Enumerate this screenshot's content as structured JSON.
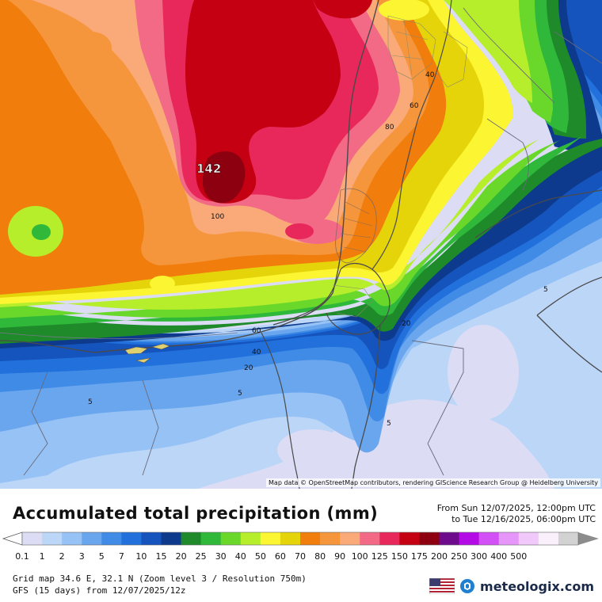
{
  "map": {
    "labels": {
      "max_value": "142",
      "c100": "100",
      "c80": "80",
      "c60_east": "60",
      "c40_east": "40",
      "c60_south": "60",
      "c40_south": "40",
      "c20_south": "20",
      "c20_east": "20",
      "c5_west": "5",
      "c5_mid": "5",
      "c5_south": "5",
      "c5_east": "5"
    },
    "attribution": "Map data © OpenStreetMap contributors, rendering GIScience Research Group @ Heidelberg University"
  },
  "header": {
    "title": "Accumulated total precipitation (mm)",
    "from": "From Sun 12/07/2025, 12:00pm UTC",
    "to": "to Tue 12/16/2025, 06:00pm UTC"
  },
  "legend": {
    "bins": [
      {
        "label": "0.1",
        "color": "#dcdcf5"
      },
      {
        "label": "1",
        "color": "#bcd6f8"
      },
      {
        "label": "2",
        "color": "#96c2f5"
      },
      {
        "label": "3",
        "color": "#6aa6ee"
      },
      {
        "label": "5",
        "color": "#3f8be6"
      },
      {
        "label": "7",
        "color": "#2270dc"
      },
      {
        "label": "10",
        "color": "#1454bc"
      },
      {
        "label": "15",
        "color": "#0d3a8c"
      },
      {
        "label": "20",
        "color": "#1e8a2a"
      },
      {
        "label": "25",
        "color": "#30b83a"
      },
      {
        "label": "30",
        "color": "#6ad82a"
      },
      {
        "label": "40",
        "color": "#b6ee2c"
      },
      {
        "label": "50",
        "color": "#fbf532"
      },
      {
        "label": "60",
        "color": "#e6d40a"
      },
      {
        "label": "70",
        "color": "#f07d0c"
      },
      {
        "label": "80",
        "color": "#f5963c"
      },
      {
        "label": "90",
        "color": "#faaa78"
      },
      {
        "label": "100",
        "color": "#f26a86"
      },
      {
        "label": "125",
        "color": "#e8285a"
      },
      {
        "label": "150",
        "color": "#c40012"
      },
      {
        "label": "175",
        "color": "#8c0010"
      },
      {
        "label": "200",
        "color": "#6e0a8c"
      },
      {
        "label": "250",
        "color": "#b40ae6"
      },
      {
        "label": "300",
        "color": "#d250f5"
      },
      {
        "label": "400",
        "color": "#e696f8"
      },
      {
        "label": "500",
        "color": "#f0c8fa"
      },
      {
        "label": "",
        "color": "#faf0fc"
      },
      {
        "label": "",
        "color": "#d2d2d2"
      }
    ],
    "arrow_left_color": "#ffffff",
    "arrow_right_color": "#8c8c8c"
  },
  "footer": {
    "grid": "Grid map 34.6 E, 32.1 N (Zoom level 3 / Resolution 750m)",
    "model": "GFS (15 days) from 12/07/2025/12z",
    "brand_name": "meteologix.com",
    "flag_icon": "us-flag-icon",
    "logo_icon": "meteologix-logo-icon"
  }
}
